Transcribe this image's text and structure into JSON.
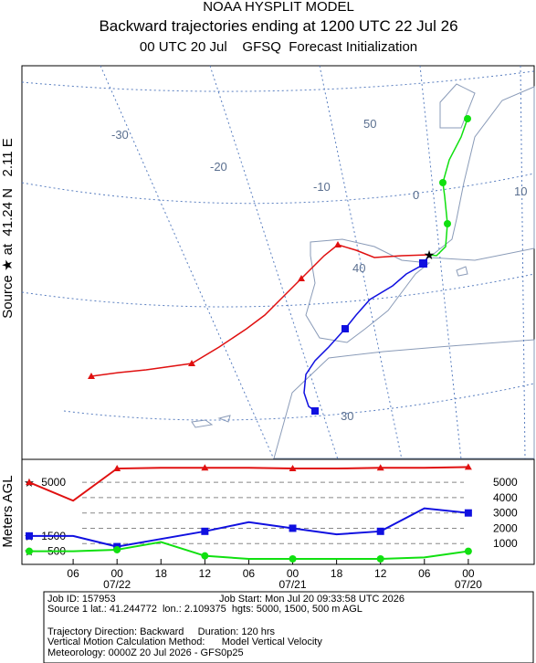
{
  "header": {
    "model": "NOAA HYSPLIT MODEL",
    "title": "Backward trajectories ending at 1200 UTC 22 Jul 26",
    "subtitle": "00 UTC 20 Jul    GFSQ  Forecast Initialization"
  },
  "source_label": "Source ★ at  41.24 N   2.11 E",
  "map_labels": [
    "-30",
    "-20",
    "-10",
    "0",
    "10",
    "50",
    "40",
    "30"
  ],
  "chart_data": {
    "type": "line",
    "y_label": "Meters AGL",
    "x": [
      0,
      6,
      12,
      18,
      24,
      30,
      36,
      42,
      48,
      54,
      60
    ],
    "xlim": [
      -1,
      69
    ],
    "xticks": [
      {
        "value": 6,
        "label": "06"
      },
      {
        "value": 12,
        "label": "00"
      },
      {
        "value": 18,
        "label": "18"
      },
      {
        "value": 24,
        "label": "12"
      },
      {
        "value": 30,
        "label": "06"
      },
      {
        "value": 36,
        "label": "00"
      },
      {
        "value": 42,
        "label": "18"
      },
      {
        "value": 48,
        "label": "12"
      },
      {
        "value": 54,
        "label": "06"
      },
      {
        "value": 60,
        "label": "00"
      }
    ],
    "x_date_labels": [
      {
        "value": 12,
        "label": "07/22"
      },
      {
        "value": 36,
        "label": "07/21"
      },
      {
        "value": 60,
        "label": "07/20"
      }
    ],
    "ylim": [
      0,
      6500
    ],
    "yticks": [
      1000,
      2000,
      3000,
      4000,
      5000
    ],
    "start_heights": [
      5000,
      1500,
      500
    ],
    "series": [
      {
        "color": "#e01010",
        "marker": "triangle",
        "values": [
          5000,
          3800,
          5900,
          5950,
          5950,
          5950,
          5900,
          5900,
          5950,
          5950,
          6000
        ]
      },
      {
        "color": "#1010e0",
        "marker": "square",
        "values": [
          1500,
          1500,
          800,
          1300,
          1800,
          2400,
          2000,
          1600,
          1800,
          3300,
          3000
        ]
      },
      {
        "color": "#10e010",
        "marker": "circle",
        "values": [
          500,
          500,
          600,
          1100,
          200,
          0,
          0,
          0,
          0,
          100,
          500
        ]
      }
    ]
  },
  "footer": [
    "Job ID: 157953",
    "Job Start: Mon Jul 20 09:33:58 UTC 2026",
    "Source 1 lat.: 41.244772  lon.: 2.109375  hgts: 5000, 1500, 500 m AGL",
    "Trajectory Direction: Backward     Duration: 120 hrs",
    "Vertical Motion Calculation Method:      Model Vertical Velocity",
    "Meteorology: 0000Z 20 Jul 2026 - GFS0p25"
  ]
}
